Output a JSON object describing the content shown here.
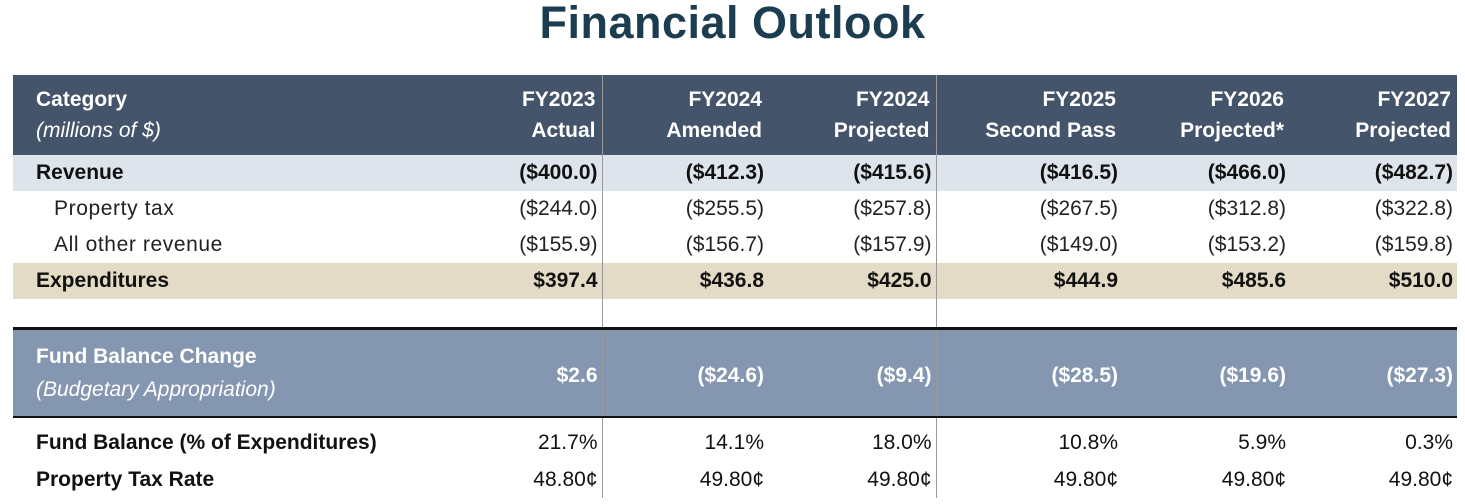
{
  "title": "Financial Outlook",
  "header": {
    "category": "Category",
    "category_sub": "(millions of $)",
    "columns": [
      {
        "line1": "FY2023",
        "line2": "Actual"
      },
      {
        "line1": "FY2024",
        "line2": "Amended"
      },
      {
        "line1": "FY2024",
        "line2": "Projected"
      },
      {
        "line1": "FY2025",
        "line2": "Second Pass"
      },
      {
        "line1": "FY2026",
        "line2": "Projected*"
      },
      {
        "line1": "FY2027",
        "line2": "Projected"
      }
    ]
  },
  "rows": {
    "revenue": {
      "label": "Revenue",
      "values": [
        "($400.0)",
        "($412.3)",
        "($415.6)",
        "($416.5)",
        "($466.0)",
        "($482.7)"
      ]
    },
    "property_tax": {
      "label": "Property tax",
      "values": [
        "($244.0)",
        "($255.5)",
        "($257.8)",
        "($267.5)",
        "($312.8)",
        "($322.8)"
      ]
    },
    "other_revenue": {
      "label": "All other revenue",
      "values": [
        "($155.9)",
        "($156.7)",
        "($157.9)",
        "($149.0)",
        "($153.2)",
        "($159.8)"
      ]
    },
    "expenditures": {
      "label": "Expenditures",
      "values": [
        "$397.4",
        "$436.8",
        "$425.0",
        "$444.9",
        "$485.6",
        "$510.0"
      ]
    },
    "fund_balance_change": {
      "label": "Fund Balance Change",
      "sublabel": "(Budgetary Appropriation)",
      "values": [
        "$2.6",
        "($24.6)",
        "($9.4)",
        "($28.5)",
        "($19.6)",
        "($27.3)"
      ]
    },
    "fund_balance_pct": {
      "label": "Fund Balance (% of Expenditures)",
      "values": [
        "21.7%",
        "14.1%",
        "18.0%",
        "10.8%",
        "5.9%",
        "0.3%"
      ]
    },
    "property_tax_rate": {
      "label": "Property Tax Rate",
      "values": [
        "48.80¢",
        "49.80¢",
        "49.80¢",
        "49.80¢",
        "49.80¢",
        "49.80¢"
      ]
    }
  },
  "colors": {
    "title": "#1c3d50",
    "header_bg": "#44546a",
    "revenue_bg": "#dee4ec",
    "expenditures_bg": "#e3dbc5",
    "fund_balance_change_bg": "#8496b0"
  }
}
